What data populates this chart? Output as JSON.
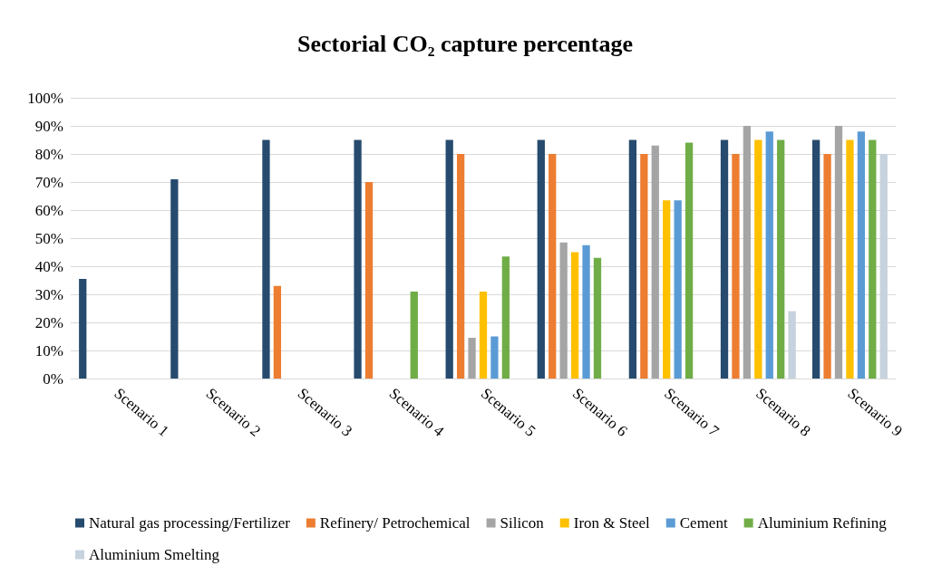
{
  "chart_data": {
    "type": "bar",
    "title": "Sectorial CO₂ capture percentage",
    "categories": [
      "Scenario 1",
      "Scenario 2",
      "Scenario 3",
      "Scenario 4",
      "Scenario 5",
      "Scenario 6",
      "Scenario 7",
      "Scenario 8",
      "Scenario 9"
    ],
    "series": [
      {
        "name": "Natural gas processing/Fertilizer",
        "color": "#264b6e",
        "values": [
          35.5,
          71,
          85,
          85,
          85,
          85,
          85,
          85,
          85
        ]
      },
      {
        "name": "Refinery/ Petrochemical",
        "color": "#ed7d31",
        "values": [
          null,
          null,
          33,
          70,
          80,
          80,
          80,
          80,
          80
        ]
      },
      {
        "name": "Silicon",
        "color": "#a5a5a5",
        "values": [
          null,
          null,
          null,
          null,
          14.5,
          48.5,
          83,
          90,
          90
        ]
      },
      {
        "name": "Iron & Steel",
        "color": "#ffc000",
        "values": [
          null,
          null,
          null,
          null,
          31,
          45,
          63.5,
          85,
          85
        ]
      },
      {
        "name": "Cement",
        "color": "#5b9bd5",
        "values": [
          null,
          null,
          null,
          null,
          15,
          47.5,
          63.5,
          88,
          88
        ]
      },
      {
        "name": "Aluminium Refining",
        "color": "#70ad47",
        "values": [
          null,
          null,
          null,
          31,
          43.5,
          43,
          84,
          85,
          85
        ]
      },
      {
        "name": "Aluminium Smelting",
        "color": "#c6d2de",
        "values": [
          null,
          null,
          null,
          null,
          null,
          null,
          null,
          24,
          80
        ]
      }
    ],
    "ylim": [
      0,
      100
    ],
    "yticks": [
      {
        "value": 0,
        "label": "0%"
      },
      {
        "value": 10,
        "label": "10%"
      },
      {
        "value": 20,
        "label": "20%"
      },
      {
        "value": 30,
        "label": "30%"
      },
      {
        "value": 40,
        "label": "40%"
      },
      {
        "value": 50,
        "label": "50%"
      },
      {
        "value": 60,
        "label": "60%"
      },
      {
        "value": 70,
        "label": "70%"
      },
      {
        "value": 80,
        "label": "80%"
      },
      {
        "value": 90,
        "label": "90%"
      },
      {
        "value": 100,
        "label": "100%"
      }
    ],
    "grid": "y",
    "legend": "bottom"
  }
}
